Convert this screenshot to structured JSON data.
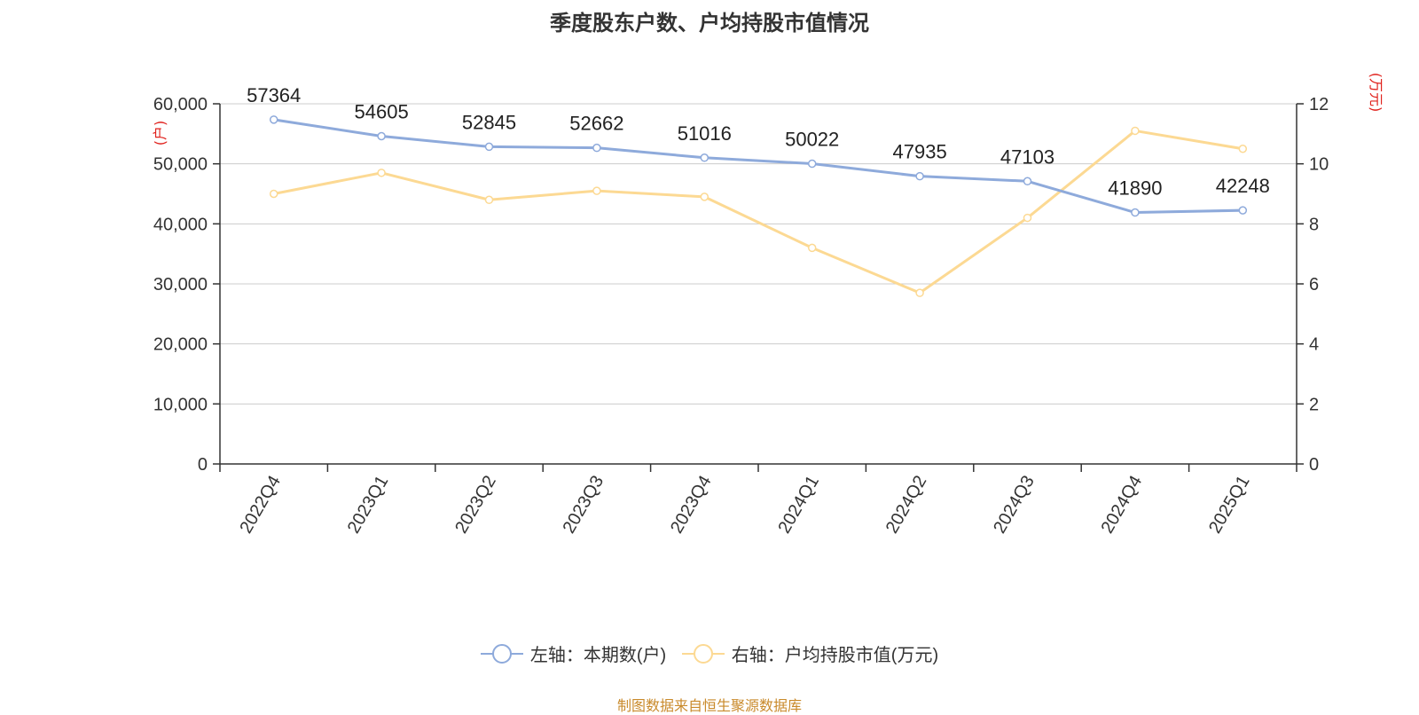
{
  "title": "季度股东户数、户均持股市值情况",
  "source": "制图数据来自恒生聚源数据库",
  "colors": {
    "left_series": "#8eaadb",
    "right_series": "#fcd993",
    "axis_unit": "#e0201b",
    "source": "#c98a2b"
  },
  "legend": [
    {
      "label": "左轴：本期数(户)",
      "color": "#8eaadb"
    },
    {
      "label": "右轴：户均持股市值(万元)",
      "color": "#fcd993"
    }
  ],
  "chart_data": {
    "type": "line",
    "title": "季度股东户数、户均持股市值情况",
    "categories": [
      "2022Q4",
      "2023Q1",
      "2023Q2",
      "2023Q3",
      "2023Q4",
      "2024Q1",
      "2024Q2",
      "2024Q3",
      "2024Q4",
      "2025Q1"
    ],
    "left_axis": {
      "unit_label": "(户)",
      "min": 0,
      "max": 60000,
      "ticks": [
        0,
        10000,
        20000,
        30000,
        40000,
        50000,
        60000
      ],
      "tick_labels": [
        "0",
        "10,000",
        "20,000",
        "30,000",
        "40,000",
        "50,000",
        "60,000"
      ]
    },
    "right_axis": {
      "unit_label": "(万元)",
      "min": 0,
      "max": 12,
      "ticks": [
        0,
        2,
        4,
        6,
        8,
        10,
        12
      ],
      "tick_labels": [
        "0",
        "2",
        "4",
        "6",
        "8",
        "10",
        "12"
      ]
    },
    "grid": true,
    "series": [
      {
        "name": "左轴：本期数(户)",
        "axis": "left",
        "color": "#8eaadb",
        "values": [
          57364,
          54605,
          52845,
          52662,
          51016,
          50022,
          47935,
          47103,
          41890,
          42248
        ],
        "data_labels": [
          "57364",
          "54605",
          "52845",
          "52662",
          "51016",
          "50022",
          "47935",
          "47103",
          "41890",
          "42248"
        ]
      },
      {
        "name": "右轴：户均持股市值(万元)",
        "axis": "right",
        "color": "#fcd993",
        "values": [
          9.0,
          9.7,
          8.8,
          9.1,
          8.9,
          7.2,
          5.7,
          8.2,
          11.1,
          10.5
        ]
      }
    ]
  }
}
